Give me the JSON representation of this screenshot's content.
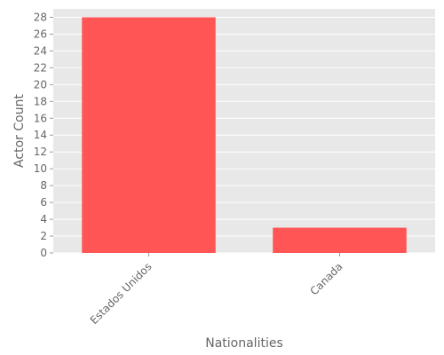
{
  "chart_data": {
    "type": "bar",
    "categories": [
      "Estados Unidos",
      "Canada"
    ],
    "values": [
      28,
      3
    ],
    "xlabel": "Nationalities",
    "ylabel": "Actor Count",
    "ylim": [
      0,
      29
    ],
    "yticks": [
      0,
      2,
      4,
      6,
      8,
      10,
      12,
      14,
      16,
      18,
      20,
      22,
      24,
      26,
      28
    ],
    "grid": true,
    "legend": "none",
    "colors": {
      "bar": "#ff5555",
      "plot_background": "#e8e8e8",
      "grid": "#ffffff",
      "text": "#666666"
    }
  }
}
